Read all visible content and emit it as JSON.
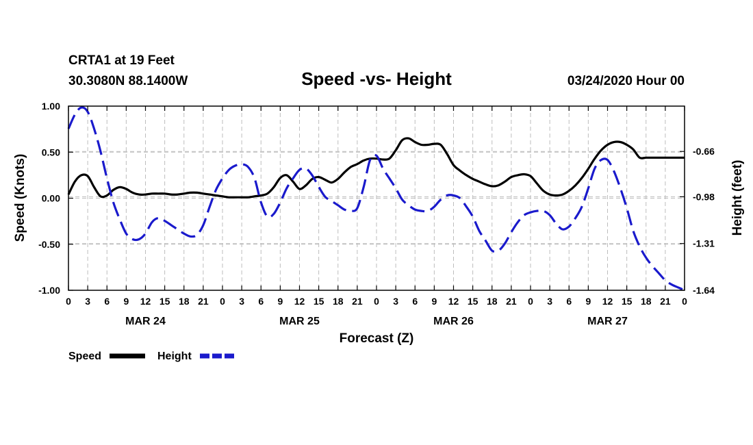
{
  "header": {
    "station": "CRTA1 at 19 Feet",
    "location": "30.3080N 88.1400W",
    "title": "Speed -vs- Height",
    "datetime": "03/24/2020 Hour 00"
  },
  "colors": {
    "speed": "#000000",
    "height": "#1a1acc",
    "grid": "#bdbdbd"
  },
  "chart_data": {
    "type": "line",
    "title": "Speed -vs- Height",
    "xlabel": "Forecast (Z)",
    "ylabel": "Speed (Knots)",
    "y2label": "Height (feet)",
    "xlim": [
      0,
      96
    ],
    "ylim": [
      -1.0,
      1.0
    ],
    "y2lim": [
      -1.64,
      -0.34
    ],
    "y_ticks": [
      "1.00",
      "0.50",
      "0.00",
      "-0.50",
      "-1.00"
    ],
    "y_tick_values": [
      1.0,
      0.5,
      0.0,
      -0.5,
      -1.0
    ],
    "y2_ticks": [
      "-0.66",
      "-0.98",
      "-1.31",
      "-1.64"
    ],
    "y2_tick_values": [
      -0.66,
      -0.98,
      -1.31,
      -1.64
    ],
    "x_tick_labels": [
      "0",
      "3",
      "6",
      "9",
      "12",
      "15",
      "18",
      "21",
      "0",
      "3",
      "6",
      "9",
      "12",
      "15",
      "18",
      "21",
      "0",
      "3",
      "6",
      "9",
      "12",
      "15",
      "18",
      "21",
      "0",
      "3",
      "6",
      "9",
      "12",
      "15",
      "18",
      "21",
      "0"
    ],
    "day_labels": [
      {
        "label": "MAR 24",
        "hour": 12
      },
      {
        "label": "MAR 25",
        "hour": 36
      },
      {
        "label": "MAR 26",
        "hour": 60
      },
      {
        "label": "MAR 27",
        "hour": 84
      }
    ],
    "grid": true,
    "series": [
      {
        "name": "Speed",
        "axis": "left",
        "style": "solid",
        "x": [
          0,
          1,
          2,
          3,
          4,
          5,
          6,
          7,
          8,
          9,
          10,
          11,
          12,
          13,
          14,
          15,
          16,
          17,
          18,
          19,
          20,
          21,
          22,
          23,
          24,
          25,
          26,
          27,
          28,
          29,
          30,
          31,
          32,
          33,
          34,
          35,
          36,
          37,
          38,
          39,
          40,
          41,
          42,
          43,
          44,
          45,
          46,
          47,
          48,
          49,
          50,
          51,
          52,
          53,
          54,
          55,
          56,
          57,
          58,
          59,
          60,
          61,
          62,
          63,
          64,
          65,
          66,
          67,
          68,
          69,
          70,
          71,
          72,
          73,
          74,
          75,
          76,
          77,
          78,
          79,
          80,
          81,
          82,
          83,
          84,
          85,
          86,
          87,
          88,
          89,
          90,
          91,
          92,
          93,
          94,
          95,
          96
        ],
        "values": [
          0.04,
          0.18,
          0.25,
          0.24,
          0.12,
          0.02,
          0.03,
          0.09,
          0.12,
          0.1,
          0.06,
          0.04,
          0.04,
          0.05,
          0.05,
          0.05,
          0.04,
          0.04,
          0.05,
          0.06,
          0.06,
          0.05,
          0.04,
          0.03,
          0.02,
          0.01,
          0.01,
          0.01,
          0.01,
          0.02,
          0.03,
          0.05,
          0.12,
          0.22,
          0.25,
          0.18,
          0.1,
          0.14,
          0.21,
          0.23,
          0.2,
          0.17,
          0.21,
          0.28,
          0.34,
          0.37,
          0.41,
          0.43,
          0.43,
          0.42,
          0.43,
          0.52,
          0.63,
          0.65,
          0.61,
          0.58,
          0.58,
          0.59,
          0.58,
          0.48,
          0.36,
          0.3,
          0.25,
          0.21,
          0.18,
          0.15,
          0.13,
          0.14,
          0.18,
          0.23,
          0.25,
          0.26,
          0.24,
          0.16,
          0.08,
          0.04,
          0.03,
          0.04,
          0.08,
          0.14,
          0.22,
          0.32,
          0.43,
          0.52,
          0.58,
          0.61,
          0.61,
          0.58,
          0.53,
          0.44,
          0.44,
          0.44,
          0.44,
          0.44,
          0.44,
          0.44,
          0.44
        ]
      },
      {
        "name": "Height",
        "axis": "right",
        "style": "dashed",
        "x": [
          0,
          1,
          2,
          3,
          4,
          5,
          6,
          7,
          8,
          9,
          10,
          11,
          12,
          13,
          14,
          15,
          16,
          17,
          18,
          19,
          20,
          21,
          22,
          23,
          24,
          25,
          26,
          27,
          28,
          29,
          30,
          31,
          32,
          33,
          34,
          35,
          36,
          37,
          38,
          39,
          40,
          41,
          42,
          43,
          44,
          45,
          46,
          47,
          48,
          49,
          50,
          51,
          52,
          53,
          54,
          55,
          56,
          57,
          58,
          59,
          60,
          61,
          62,
          63,
          64,
          65,
          66,
          67,
          68,
          69,
          70,
          71,
          72,
          73,
          74,
          75,
          76,
          77,
          78,
          79,
          80,
          81,
          82,
          83,
          84,
          85,
          86,
          87,
          88,
          89,
          90,
          91,
          92,
          93,
          94,
          95,
          96
        ],
        "values": [
          -0.5,
          -0.4,
          -0.35,
          -0.38,
          -0.5,
          -0.66,
          -0.85,
          -1.02,
          -1.14,
          -1.24,
          -1.28,
          -1.28,
          -1.24,
          -1.16,
          -1.13,
          -1.15,
          -1.18,
          -1.21,
          -1.24,
          -1.26,
          -1.25,
          -1.18,
          -1.05,
          -0.93,
          -0.85,
          -0.79,
          -0.76,
          -0.75,
          -0.77,
          -0.85,
          -1.02,
          -1.12,
          -1.1,
          -1.02,
          -0.92,
          -0.85,
          -0.79,
          -0.78,
          -0.83,
          -0.91,
          -0.98,
          -1.01,
          -1.04,
          -1.07,
          -1.08,
          -1.06,
          -0.91,
          -0.72,
          -0.69,
          -0.78,
          -0.85,
          -0.92,
          -1.0,
          -1.04,
          -1.07,
          -1.08,
          -1.08,
          -1.05,
          -1.0,
          -0.97,
          -0.97,
          -0.99,
          -1.05,
          -1.12,
          -1.22,
          -1.29,
          -1.36,
          -1.36,
          -1.31,
          -1.23,
          -1.16,
          -1.11,
          -1.09,
          -1.08,
          -1.08,
          -1.11,
          -1.17,
          -1.21,
          -1.19,
          -1.13,
          -1.05,
          -0.92,
          -0.78,
          -0.72,
          -0.72,
          -0.8,
          -0.92,
          -1.06,
          -1.22,
          -1.33,
          -1.41,
          -1.47,
          -1.52,
          -1.57,
          -1.6,
          -1.62,
          -1.64
        ]
      }
    ]
  },
  "legend": [
    {
      "name": "Speed",
      "style": "solid"
    },
    {
      "name": "Height",
      "style": "dashed"
    }
  ]
}
